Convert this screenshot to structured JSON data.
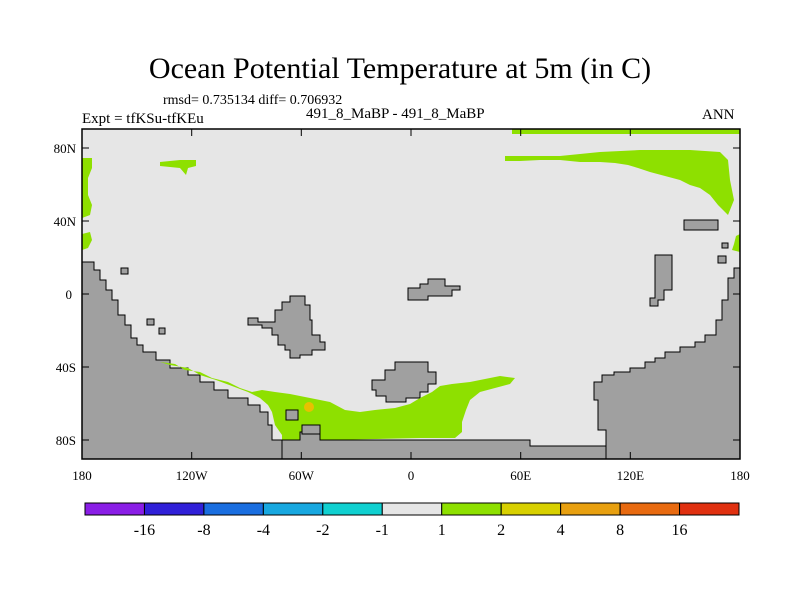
{
  "title": "Ocean Potential Temperature at 5m (in C)",
  "stats_line": "rmsd= 0.735134 diff= 0.706932",
  "center_label": "491_8_MaBP - 491_8_MaBP",
  "expt_label": "Expt = tfKSu-tfKEu",
  "season_label": "ANN",
  "map": {
    "lon_range": [
      -180,
      180
    ],
    "lat_range": [
      -90,
      90
    ],
    "x_ticks": [
      "180",
      "120W",
      "60W",
      "0",
      "60E",
      "120E",
      "180"
    ],
    "y_ticks": [
      "80N",
      "40N",
      "0",
      "40S",
      "80S"
    ],
    "land_color": "#a0a0a0",
    "background_color": "#e6e6e6",
    "anomaly_color_1_to_2": "#8ee000",
    "anomaly_color_2_to_4": "#e8c000"
  },
  "colorbar": {
    "labels": [
      "-16",
      "-8",
      "-4",
      "-2",
      "-1",
      "1",
      "2",
      "4",
      "8",
      "16"
    ],
    "colors": [
      "#8a1ee6",
      "#3020d8",
      "#1a6ee0",
      "#18a8e0",
      "#10d0d0",
      "#e6e6e6",
      "#8ee000",
      "#d8d000",
      "#e8a010",
      "#e86a10",
      "#e03010"
    ]
  }
}
